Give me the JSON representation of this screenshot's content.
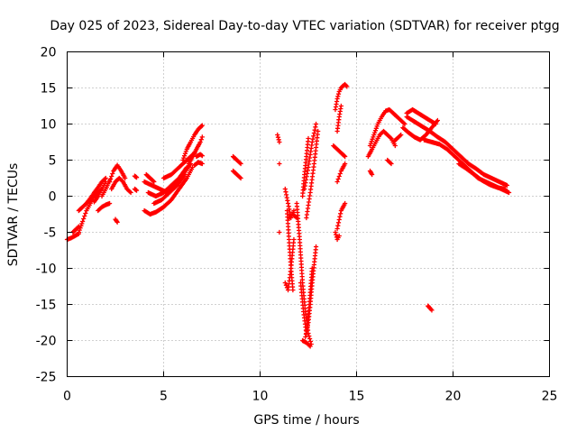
{
  "chart_data": {
    "type": "scatter",
    "title": "Day 025 of 2023, Sidereal Day-to-day VTEC variation (SDTVAR) for receiver ptgg",
    "xlabel": "GPS time / hours",
    "ylabel": "SDTVAR / TECUs",
    "xlim": [
      0,
      25
    ],
    "ylim": [
      -25,
      20
    ],
    "xticks": [
      0,
      5,
      10,
      15,
      20,
      25
    ],
    "yticks": [
      -25,
      -20,
      -15,
      -10,
      -5,
      0,
      5,
      10,
      15,
      20
    ],
    "grid": true,
    "marker": "plus",
    "color": "#ff0000",
    "segments": [
      {
        "x": [
          0.0,
          0.2,
          0.4,
          0.6
        ],
        "y": [
          -6.0,
          -5.8,
          -5.5,
          -5.2
        ]
      },
      {
        "x": [
          0.3,
          0.45,
          0.6
        ],
        "y": [
          -5.0,
          -4.6,
          -4.2
        ]
      },
      {
        "x": [
          0.6,
          0.8,
          1.0,
          1.2,
          1.4,
          1.6,
          1.8
        ],
        "y": [
          -5.0,
          -3.5,
          -2.0,
          -1.0,
          0.0,
          0.5,
          1.0
        ]
      },
      {
        "x": [
          0.6,
          0.8,
          1.0,
          1.2,
          1.4,
          1.6
        ],
        "y": [
          -2.0,
          -1.5,
          -1.0,
          -0.5,
          0.0,
          0.5
        ]
      },
      {
        "x": [
          1.0,
          1.2,
          1.4,
          1.6,
          1.8,
          2.0
        ],
        "y": [
          -1.0,
          -0.3,
          0.5,
          1.2,
          2.0,
          2.5
        ]
      },
      {
        "x": [
          1.4,
          1.6,
          1.8,
          2.0
        ],
        "y": [
          -0.8,
          0.0,
          1.0,
          2.0
        ]
      },
      {
        "x": [
          1.8,
          2.0,
          2.2
        ],
        "y": [
          0.0,
          1.0,
          2.2
        ]
      },
      {
        "x": [
          1.6,
          1.8,
          2.0,
          2.2
        ],
        "y": [
          -2.0,
          -1.5,
          -1.2,
          -1.0
        ]
      },
      {
        "x": [
          2.2,
          2.4,
          2.6,
          2.8,
          3.0
        ],
        "y": [
          2.0,
          3.5,
          4.3,
          3.5,
          2.5
        ]
      },
      {
        "x": [
          2.3,
          2.5,
          2.7,
          2.9,
          3.1,
          3.3
        ],
        "y": [
          1.0,
          2.0,
          2.5,
          2.0,
          1.0,
          0.5
        ]
      },
      {
        "x": [
          2.5,
          2.6
        ],
        "y": [
          -3.2,
          -3.6
        ]
      },
      {
        "x": [
          3.5,
          3.6
        ],
        "y": [
          2.8,
          2.6
        ]
      },
      {
        "x": [
          3.5,
          3.6
        ],
        "y": [
          1.0,
          0.8
        ]
      },
      {
        "x": [
          4.1,
          4.3,
          4.5
        ],
        "y": [
          3.0,
          2.5,
          2.0
        ]
      },
      {
        "x": [
          4.0,
          4.3,
          4.6,
          5.0,
          5.4,
          5.8,
          6.2,
          6.5
        ],
        "y": [
          -2.0,
          -2.5,
          -2.2,
          -1.5,
          -0.5,
          1.0,
          2.5,
          4.0
        ]
      },
      {
        "x": [
          4.0,
          4.4,
          4.8,
          5.2,
          5.6,
          6.0,
          6.4
        ],
        "y": [
          2.0,
          1.5,
          1.0,
          0.5,
          1.5,
          3.0,
          4.5
        ]
      },
      {
        "x": [
          4.2,
          4.6,
          5.0,
          5.4,
          5.8,
          6.2
        ],
        "y": [
          0.5,
          0.0,
          0.5,
          1.5,
          2.5,
          4.0
        ]
      },
      {
        "x": [
          4.5,
          4.9,
          5.3,
          5.7,
          6.1
        ],
        "y": [
          -1.0,
          -0.5,
          0.5,
          1.5,
          3.0
        ]
      },
      {
        "x": [
          5.0,
          5.4,
          5.8,
          6.2,
          6.6
        ],
        "y": [
          2.5,
          3.0,
          4.0,
          5.0,
          6.0
        ]
      },
      {
        "x": [
          6.0,
          6.2,
          6.4,
          6.6,
          6.8,
          7.0
        ],
        "y": [
          5.0,
          6.5,
          7.5,
          8.5,
          9.3,
          9.8
        ]
      },
      {
        "x": [
          6.3,
          6.5,
          6.7,
          6.9,
          7.0
        ],
        "y": [
          4.5,
          5.5,
          6.5,
          7.5,
          8.2
        ]
      },
      {
        "x": [
          6.7,
          6.9,
          7.0
        ],
        "y": [
          5.5,
          5.8,
          5.6
        ]
      },
      {
        "x": [
          6.6,
          6.8,
          7.0
        ],
        "y": [
          4.3,
          4.7,
          4.5
        ]
      },
      {
        "x": [
          8.6,
          8.8,
          9.0
        ],
        "y": [
          5.5,
          5.0,
          4.5
        ]
      },
      {
        "x": [
          8.6,
          8.8,
          9.0
        ],
        "y": [
          3.5,
          3.0,
          2.5
        ]
      },
      {
        "x": [
          10.9,
          11.0
        ],
        "y": [
          8.5,
          7.5
        ]
      },
      {
        "x": [
          11.0
        ],
        "y": [
          4.5
        ]
      },
      {
        "x": [
          11.0
        ],
        "y": [
          -5.0
        ]
      },
      {
        "x": [
          11.3,
          11.45,
          11.6,
          11.75
        ],
        "y": [
          1.0,
          -1.0,
          -3.0,
          -2.0
        ]
      },
      {
        "x": [
          11.3,
          11.45,
          11.6,
          11.75
        ],
        "y": [
          -12.0,
          -13.0,
          -10.0,
          -6.0
        ]
      },
      {
        "x": [
          11.4,
          11.5,
          11.6,
          11.7
        ],
        "y": [
          -2.0,
          -6.0,
          -10.0,
          -13.0
        ]
      },
      {
        "x": [
          11.5,
          11.7,
          11.9
        ],
        "y": [
          -3.0,
          -2.5,
          -3.0
        ]
      },
      {
        "x": [
          11.9,
          12.05,
          12.2,
          12.35,
          12.5,
          12.65
        ],
        "y": [
          -1.0,
          -6.0,
          -12.0,
          -16.0,
          -19.0,
          -20.5
        ]
      },
      {
        "x": [
          12.2,
          12.4,
          12.6
        ],
        "y": [
          -20.0,
          -20.3,
          -20.8
        ]
      },
      {
        "x": [
          12.35,
          12.5,
          12.6,
          12.7,
          12.8,
          12.9
        ],
        "y": [
          -19.5,
          -17.5,
          -15.0,
          -12.0,
          -9.5,
          -7.0
        ]
      },
      {
        "x": [
          12.1,
          12.25,
          12.4,
          12.55,
          12.7
        ],
        "y": [
          -12.0,
          -16.0,
          -19.0,
          -15.0,
          -10.0
        ]
      },
      {
        "x": [
          12.2,
          12.3,
          12.4,
          12.5
        ],
        "y": [
          0.0,
          3.0,
          5.5,
          8.0
        ]
      },
      {
        "x": [
          12.3,
          12.5,
          12.7,
          12.9
        ],
        "y": [
          1.0,
          4.0,
          7.5,
          10.0
        ]
      },
      {
        "x": [
          12.4,
          12.6,
          12.8,
          13.0
        ],
        "y": [
          -3.0,
          0.5,
          4.5,
          9.0
        ]
      },
      {
        "x": [
          13.9,
          14.0,
          14.1,
          14.2,
          14.3,
          14.4,
          14.5
        ],
        "y": [
          12.0,
          13.5,
          14.5,
          15.0,
          15.3,
          15.5,
          15.2
        ]
      },
      {
        "x": [
          13.9,
          14.0,
          14.1
        ],
        "y": [
          -5.0,
          -6.0,
          -5.5
        ]
      },
      {
        "x": [
          14.0,
          14.2,
          14.4
        ],
        "y": [
          -4.5,
          -2.0,
          -1.0
        ]
      },
      {
        "x": [
          13.8,
          14.0,
          14.2,
          14.4
        ],
        "y": [
          7.0,
          6.5,
          6.0,
          5.5
        ]
      },
      {
        "x": [
          14.0,
          14.2,
          14.4
        ],
        "y": [
          2.0,
          3.5,
          4.5
        ]
      },
      {
        "x": [
          14.0,
          14.1,
          14.2
        ],
        "y": [
          9.0,
          11.0,
          12.5
        ]
      },
      {
        "x": [
          15.7,
          15.8
        ],
        "y": [
          3.5,
          3.0
        ]
      },
      {
        "x": [
          15.7,
          15.9,
          16.1,
          16.3,
          16.5,
          16.7,
          16.9,
          17.1,
          17.3,
          17.5
        ],
        "y": [
          7.0,
          8.5,
          10.0,
          11.0,
          11.8,
          12.0,
          11.5,
          11.0,
          10.5,
          10.0
        ]
      },
      {
        "x": [
          15.6,
          15.8,
          16.0,
          16.2,
          16.4,
          16.6,
          16.8,
          17.0
        ],
        "y": [
          5.5,
          6.5,
          7.5,
          8.5,
          9.0,
          8.5,
          8.0,
          7.0
        ]
      },
      {
        "x": [
          16.6,
          16.8
        ],
        "y": [
          5.0,
          4.5
        ]
      },
      {
        "x": [
          16.9,
          17.1,
          17.3
        ],
        "y": [
          7.5,
          8.0,
          8.5
        ]
      },
      {
        "x": [
          17.6,
          17.9,
          18.2,
          18.5,
          18.8,
          19.1
        ],
        "y": [
          11.5,
          12.0,
          11.5,
          11.0,
          10.5,
          10.0
        ]
      },
      {
        "x": [
          17.4,
          17.7,
          18.0,
          18.3,
          18.6,
          18.9,
          19.2
        ],
        "y": [
          9.5,
          8.8,
          8.2,
          7.8,
          8.5,
          9.5,
          10.5
        ]
      },
      {
        "x": [
          17.6,
          17.9,
          18.2,
          18.5,
          18.8
        ],
        "y": [
          11.0,
          10.5,
          10.0,
          9.5,
          9.0
        ]
      },
      {
        "x": [
          18.8,
          19.2,
          19.6,
          20.0,
          20.4,
          20.8,
          21.2,
          21.6,
          22.0,
          22.4,
          22.8
        ],
        "y": [
          9.0,
          8.2,
          7.5,
          6.5,
          5.5,
          4.5,
          3.8,
          3.0,
          2.5,
          2.0,
          1.5
        ]
      },
      {
        "x": [
          18.5,
          18.9,
          19.3,
          19.7,
          20.1,
          20.5,
          20.9,
          21.3,
          21.7,
          22.1,
          22.5,
          22.9
        ],
        "y": [
          7.8,
          7.5,
          7.2,
          6.5,
          5.5,
          4.5,
          3.5,
          2.5,
          2.0,
          1.5,
          1.0,
          0.5
        ]
      },
      {
        "x": [
          20.3,
          20.7,
          21.1,
          21.5,
          21.9,
          22.3,
          22.7
        ],
        "y": [
          4.5,
          3.8,
          3.0,
          2.2,
          1.6,
          1.2,
          1.0
        ]
      },
      {
        "x": [
          18.7,
          18.8,
          18.9
        ],
        "y": [
          -15.2,
          -15.5,
          -15.8
        ]
      }
    ]
  }
}
